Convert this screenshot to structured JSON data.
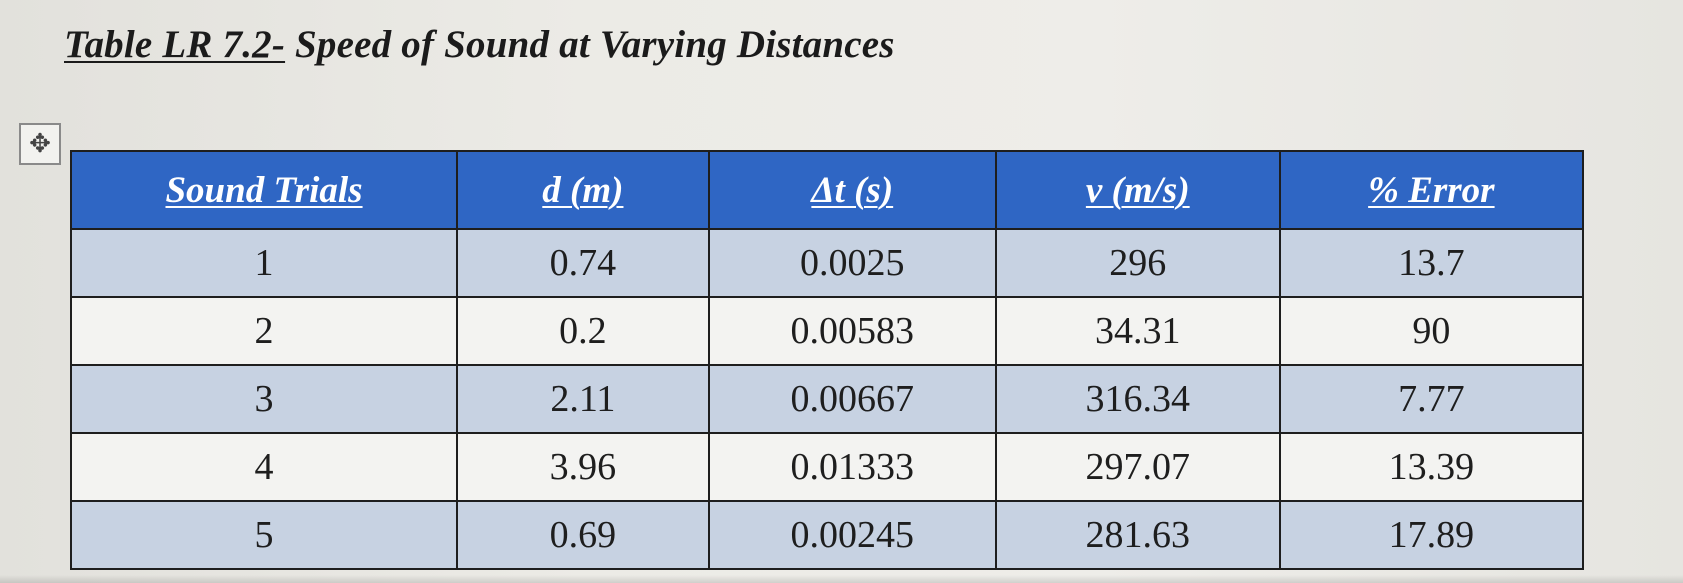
{
  "document": {
    "title_underlined": "Table LR 7.2-",
    "title_rest": " Speed of Sound at Varying Distances",
    "move_handle_icon": "move-arrows-icon"
  },
  "table": {
    "headers": [
      "Sound Trials",
      "d (m)",
      "Δt (s)",
      "v (m/s)",
      "% Error"
    ],
    "rows": [
      [
        "1",
        "0.74",
        "0.0025",
        "296",
        "13.7"
      ],
      [
        "2",
        "0.2",
        "0.00583",
        "34.31",
        "90"
      ],
      [
        "3",
        "2.11",
        "0.00667",
        "316.34",
        "7.77"
      ],
      [
        "4",
        "3.96",
        "0.01333",
        "297.07",
        "13.39"
      ],
      [
        "5",
        "0.69",
        "0.00245",
        "281.63",
        "17.89"
      ]
    ]
  },
  "colors": {
    "header_bg": "#2f66c4",
    "shaded_row_bg": "#c7d2e2",
    "plain_row_bg": "#f3f3f1"
  }
}
